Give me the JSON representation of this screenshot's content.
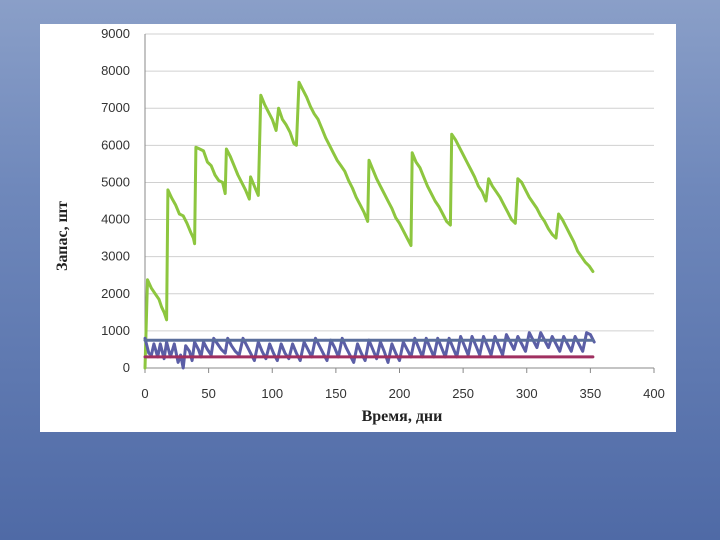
{
  "chart_data": {
    "type": "line",
    "title": "",
    "xlabel": "Время, дни",
    "ylabel": "Запас, шт",
    "xlim": [
      0,
      400
    ],
    "ylim": [
      0,
      9000
    ],
    "x_ticks": [
      0,
      50,
      100,
      150,
      200,
      250,
      300,
      350,
      400
    ],
    "y_ticks": [
      0,
      1000,
      2000,
      3000,
      4000,
      5000,
      6000,
      7000,
      8000,
      9000
    ],
    "grid": true,
    "legend": "none",
    "series": [
      {
        "color": "#8dc63f",
        "points": [
          [
            0,
            0
          ],
          [
            2,
            2380
          ],
          [
            5,
            2150
          ],
          [
            8,
            2000
          ],
          [
            11,
            1850
          ],
          [
            13,
            1650
          ],
          [
            15,
            1500
          ],
          [
            17,
            1300
          ],
          [
            18,
            4800
          ],
          [
            21,
            4580
          ],
          [
            24,
            4400
          ],
          [
            27,
            4150
          ],
          [
            30,
            4100
          ],
          [
            33,
            3900
          ],
          [
            36,
            3650
          ],
          [
            38,
            3500
          ],
          [
            39,
            3350
          ],
          [
            40,
            5950
          ],
          [
            43,
            5900
          ],
          [
            46,
            5850
          ],
          [
            49,
            5550
          ],
          [
            52,
            5450
          ],
          [
            55,
            5200
          ],
          [
            58,
            5050
          ],
          [
            61,
            5000
          ],
          [
            63,
            4700
          ],
          [
            64,
            5900
          ],
          [
            67,
            5700
          ],
          [
            70,
            5450
          ],
          [
            73,
            5200
          ],
          [
            76,
            5000
          ],
          [
            79,
            4800
          ],
          [
            82,
            4550
          ],
          [
            83,
            5150
          ],
          [
            86,
            4900
          ],
          [
            89,
            4650
          ],
          [
            91,
            7350
          ],
          [
            94,
            7100
          ],
          [
            97,
            6900
          ],
          [
            100,
            6700
          ],
          [
            103,
            6400
          ],
          [
            105,
            7000
          ],
          [
            108,
            6700
          ],
          [
            111,
            6550
          ],
          [
            114,
            6350
          ],
          [
            117,
            6050
          ],
          [
            119,
            6000
          ],
          [
            121,
            7700
          ],
          [
            124,
            7500
          ],
          [
            127,
            7300
          ],
          [
            130,
            7050
          ],
          [
            133,
            6850
          ],
          [
            136,
            6700
          ],
          [
            139,
            6450
          ],
          [
            142,
            6200
          ],
          [
            145,
            6000
          ],
          [
            148,
            5800
          ],
          [
            151,
            5600
          ],
          [
            154,
            5450
          ],
          [
            157,
            5300
          ],
          [
            160,
            5050
          ],
          [
            163,
            4850
          ],
          [
            166,
            4600
          ],
          [
            169,
            4400
          ],
          [
            172,
            4200
          ],
          [
            175,
            3950
          ],
          [
            176,
            5600
          ],
          [
            179,
            5350
          ],
          [
            182,
            5100
          ],
          [
            185,
            4900
          ],
          [
            188,
            4700
          ],
          [
            191,
            4500
          ],
          [
            194,
            4300
          ],
          [
            197,
            4050
          ],
          [
            200,
            3900
          ],
          [
            203,
            3700
          ],
          [
            206,
            3500
          ],
          [
            209,
            3300
          ],
          [
            210,
            5800
          ],
          [
            213,
            5550
          ],
          [
            216,
            5400
          ],
          [
            219,
            5150
          ],
          [
            222,
            4900
          ],
          [
            225,
            4700
          ],
          [
            228,
            4500
          ],
          [
            231,
            4350
          ],
          [
            234,
            4150
          ],
          [
            237,
            3950
          ],
          [
            240,
            3850
          ],
          [
            241,
            6300
          ],
          [
            244,
            6150
          ],
          [
            247,
            5950
          ],
          [
            250,
            5750
          ],
          [
            253,
            5550
          ],
          [
            256,
            5350
          ],
          [
            259,
            5150
          ],
          [
            262,
            4900
          ],
          [
            265,
            4750
          ],
          [
            268,
            4500
          ],
          [
            270,
            5100
          ],
          [
            273,
            4900
          ],
          [
            276,
            4750
          ],
          [
            279,
            4600
          ],
          [
            282,
            4400
          ],
          [
            285,
            4200
          ],
          [
            288,
            4000
          ],
          [
            291,
            3900
          ],
          [
            293,
            5100
          ],
          [
            296,
            5000
          ],
          [
            299,
            4800
          ],
          [
            302,
            4600
          ],
          [
            305,
            4450
          ],
          [
            308,
            4300
          ],
          [
            311,
            4100
          ],
          [
            314,
            3950
          ],
          [
            317,
            3750
          ],
          [
            320,
            3600
          ],
          [
            323,
            3500
          ],
          [
            325,
            4150
          ],
          [
            328,
            4000
          ],
          [
            331,
            3800
          ],
          [
            334,
            3600
          ],
          [
            337,
            3400
          ],
          [
            340,
            3150
          ],
          [
            343,
            3000
          ],
          [
            346,
            2850
          ],
          [
            349,
            2750
          ],
          [
            352,
            2600
          ]
        ]
      },
      {
        "color": "#5b5ea6",
        "points": [
          [
            0,
            800
          ],
          [
            3,
            400
          ],
          [
            5,
            350
          ],
          [
            7,
            650
          ],
          [
            10,
            300
          ],
          [
            12,
            650
          ],
          [
            15,
            250
          ],
          [
            17,
            700
          ],
          [
            20,
            300
          ],
          [
            23,
            650
          ],
          [
            26,
            150
          ],
          [
            28,
            350
          ],
          [
            30,
            0
          ],
          [
            32,
            600
          ],
          [
            35,
            450
          ],
          [
            37,
            200
          ],
          [
            39,
            700
          ],
          [
            42,
            500
          ],
          [
            44,
            300
          ],
          [
            46,
            700
          ],
          [
            49,
            500
          ],
          [
            52,
            350
          ],
          [
            54,
            800
          ],
          [
            57,
            650
          ],
          [
            60,
            500
          ],
          [
            63,
            400
          ],
          [
            65,
            800
          ],
          [
            68,
            600
          ],
          [
            71,
            450
          ],
          [
            74,
            350
          ],
          [
            77,
            800
          ],
          [
            80,
            600
          ],
          [
            83,
            400
          ],
          [
            86,
            200
          ],
          [
            89,
            700
          ],
          [
            92,
            450
          ],
          [
            95,
            250
          ],
          [
            98,
            650
          ],
          [
            101,
            400
          ],
          [
            104,
            200
          ],
          [
            107,
            650
          ],
          [
            110,
            400
          ],
          [
            113,
            250
          ],
          [
            116,
            650
          ],
          [
            119,
            400
          ],
          [
            122,
            200
          ],
          [
            125,
            700
          ],
          [
            128,
            500
          ],
          [
            131,
            300
          ],
          [
            134,
            800
          ],
          [
            137,
            600
          ],
          [
            140,
            400
          ],
          [
            143,
            200
          ],
          [
            146,
            750
          ],
          [
            149,
            550
          ],
          [
            152,
            300
          ],
          [
            155,
            800
          ],
          [
            158,
            550
          ],
          [
            161,
            350
          ],
          [
            164,
            150
          ],
          [
            167,
            650
          ],
          [
            170,
            400
          ],
          [
            173,
            200
          ],
          [
            176,
            750
          ],
          [
            179,
            500
          ],
          [
            182,
            250
          ],
          [
            185,
            700
          ],
          [
            188,
            450
          ],
          [
            191,
            150
          ],
          [
            194,
            650
          ],
          [
            197,
            400
          ],
          [
            200,
            200
          ],
          [
            203,
            700
          ],
          [
            206,
            500
          ],
          [
            209,
            300
          ],
          [
            212,
            800
          ],
          [
            215,
            550
          ],
          [
            218,
            300
          ],
          [
            221,
            800
          ],
          [
            224,
            550
          ],
          [
            227,
            300
          ],
          [
            230,
            800
          ],
          [
            233,
            550
          ],
          [
            236,
            300
          ],
          [
            239,
            800
          ],
          [
            242,
            550
          ],
          [
            245,
            300
          ],
          [
            248,
            850
          ],
          [
            251,
            600
          ],
          [
            254,
            350
          ],
          [
            257,
            850
          ],
          [
            260,
            600
          ],
          [
            263,
            350
          ],
          [
            266,
            850
          ],
          [
            269,
            600
          ],
          [
            272,
            350
          ],
          [
            275,
            850
          ],
          [
            278,
            600
          ],
          [
            281,
            350
          ],
          [
            284,
            900
          ],
          [
            287,
            700
          ],
          [
            290,
            500
          ],
          [
            293,
            850
          ],
          [
            296,
            650
          ],
          [
            299,
            450
          ],
          [
            302,
            950
          ],
          [
            305,
            750
          ],
          [
            308,
            550
          ],
          [
            311,
            950
          ],
          [
            314,
            750
          ],
          [
            317,
            550
          ],
          [
            320,
            850
          ],
          [
            323,
            650
          ],
          [
            326,
            450
          ],
          [
            329,
            850
          ],
          [
            332,
            650
          ],
          [
            335,
            450
          ],
          [
            338,
            850
          ],
          [
            341,
            650
          ],
          [
            344,
            450
          ],
          [
            347,
            950
          ],
          [
            350,
            900
          ],
          [
            353,
            700
          ]
        ]
      },
      {
        "color": "#5b6f9c",
        "points": [
          [
            0,
            750
          ],
          [
            352,
            750
          ]
        ]
      },
      {
        "color": "#a03060",
        "points": [
          [
            0,
            300
          ],
          [
            352,
            300
          ]
        ]
      }
    ]
  }
}
